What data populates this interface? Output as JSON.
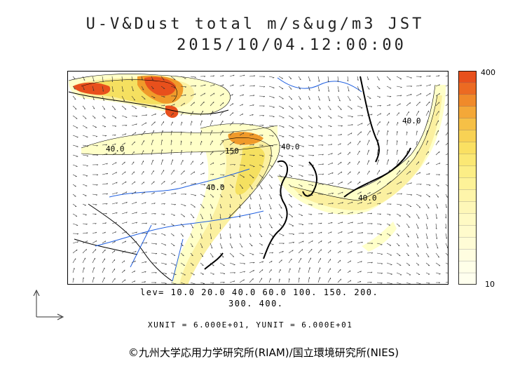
{
  "title": "U-V&Dust total m/s&ug/m3 JST",
  "datetime": "2015/10/04.12:00:00",
  "levels_line1": "lev= 10.0 20.0 40.0 60.0 100. 150. 200.",
  "levels_line2": "300. 400.",
  "units_line": "XUNIT = 6.000E+01, YUNIT = 6.000E+01",
  "credit": "©九州大学応用力学研究所(RIAM)/国立環境研究所(NIES)",
  "colorbar": {
    "max_label": "400",
    "min_label": "10"
  },
  "contour_labels": [
    "40.0",
    "150",
    "40.0",
    "40.0",
    "40.0",
    "40.0"
  ],
  "colors": {
    "coast": "#000000",
    "rivers": "#1f5fe0",
    "low": "#ffffc8",
    "mid": "#f5e060",
    "high": "#f09a2a",
    "peak": "#e8501c"
  }
}
